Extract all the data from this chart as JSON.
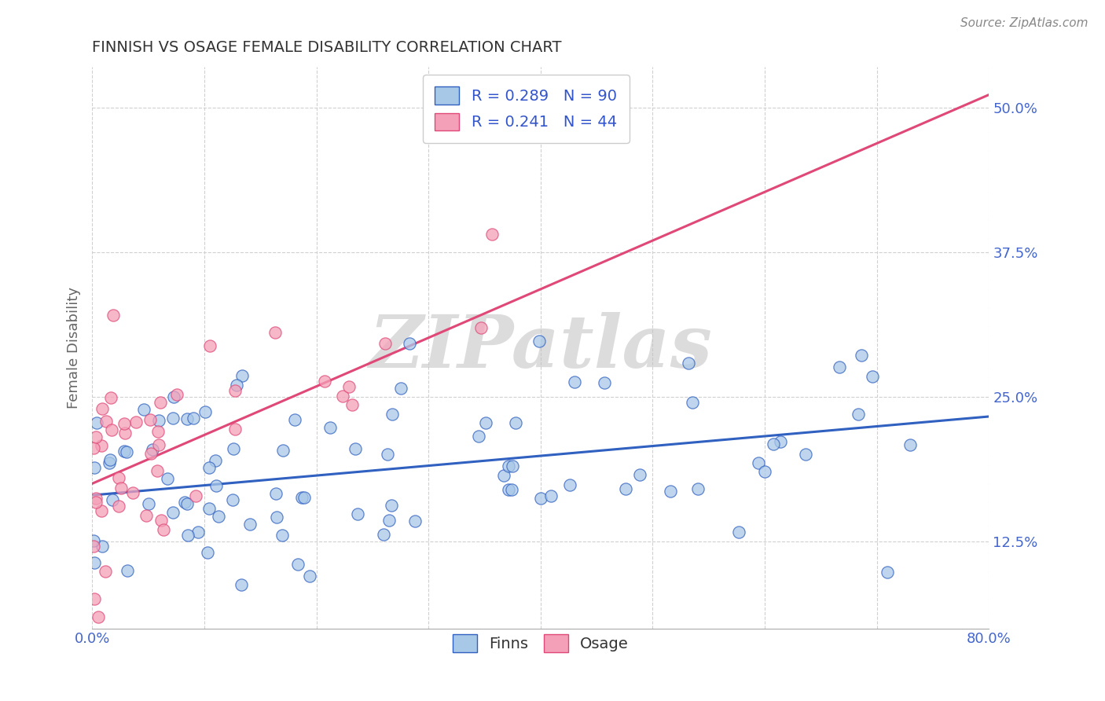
{
  "title": "FINNISH VS OSAGE FEMALE DISABILITY CORRELATION CHART",
  "source_text": "Source: ZipAtlas.com",
  "ylabel": "Female Disability",
  "xlim": [
    0.0,
    0.8
  ],
  "ylim": [
    0.05,
    0.535
  ],
  "yticks": [
    0.125,
    0.25,
    0.375,
    0.5
  ],
  "ytick_labels": [
    "12.5%",
    "25.0%",
    "37.5%",
    "50.0%"
  ],
  "xticks": [
    0.0,
    0.1,
    0.2,
    0.3,
    0.4,
    0.5,
    0.6,
    0.7,
    0.8
  ],
  "xtick_labels_show": [
    "0.0%",
    "",
    "",
    "",
    "",
    "",
    "",
    "",
    "80.0%"
  ],
  "finns_color": "#a8c8e8",
  "osage_color": "#f4a0b8",
  "finns_line_color": "#3060c0",
  "osage_line_color": "#e04878",
  "R_finns": 0.289,
  "N_finns": 90,
  "R_osage": 0.241,
  "N_osage": 44,
  "legend_label_finns": "Finns",
  "legend_label_osage": "Osage",
  "watermark": "ZIPatlas",
  "background_color": "#ffffff",
  "grid_color": "#d0d0d0",
  "title_color": "#333333",
  "axis_label_color": "#666666",
  "tick_color": "#4466cc",
  "legend_text_color": "#3355cc",
  "finns_slope_true": 0.085,
  "finns_intercept_true": 0.165,
  "osage_slope_true": 0.42,
  "osage_intercept_true": 0.175
}
